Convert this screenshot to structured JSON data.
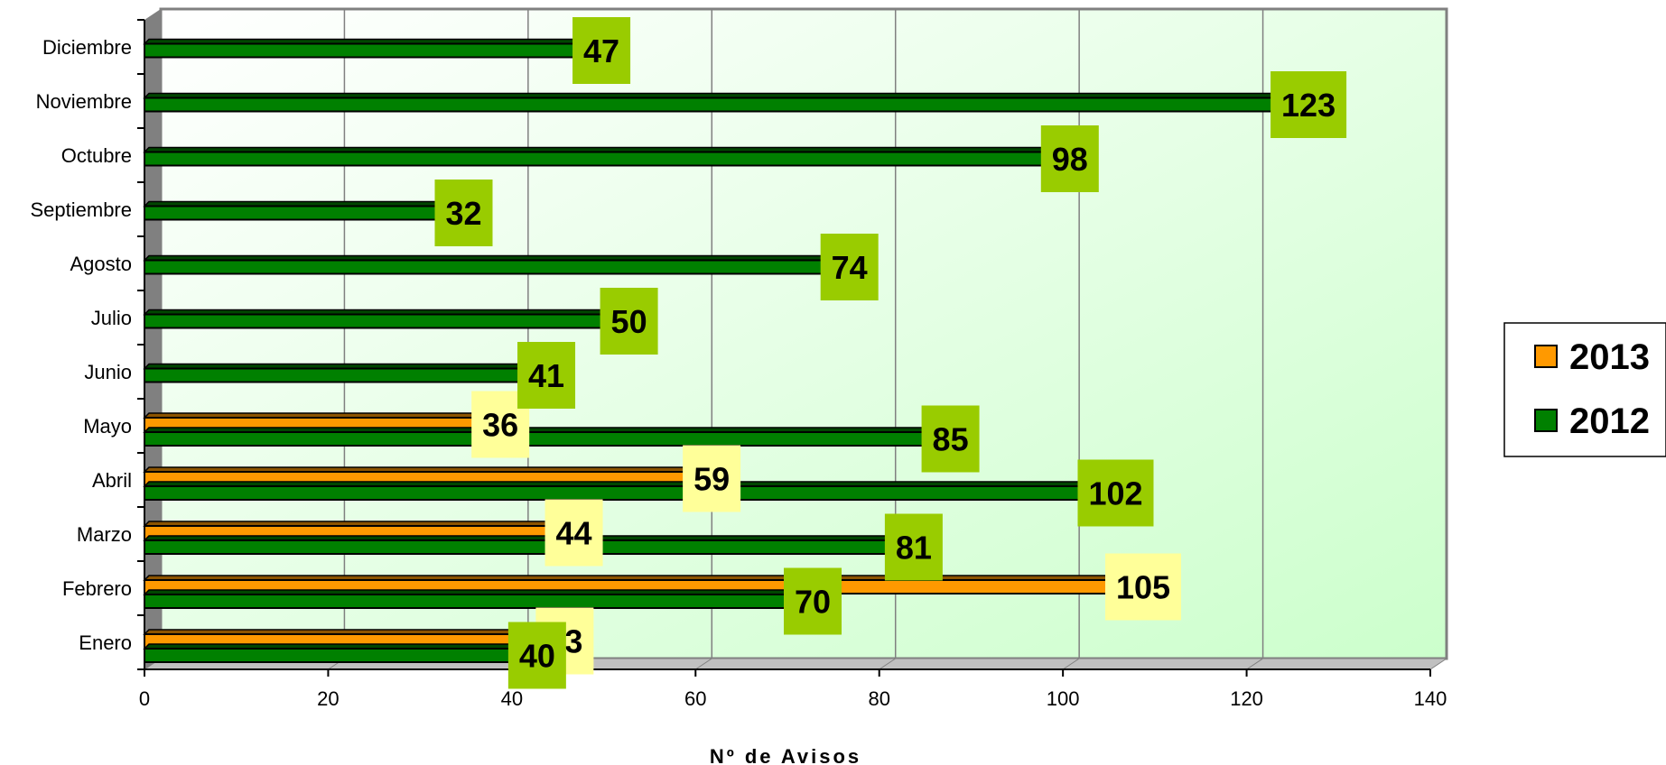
{
  "chart_data": {
    "type": "bar",
    "orientation": "horizontal",
    "categories": [
      "Enero",
      "Febrero",
      "Marzo",
      "Abril",
      "Mayo",
      "Junio",
      "Julio",
      "Agosto",
      "Septiembre",
      "Octubre",
      "Noviembre",
      "Diciembre"
    ],
    "series": [
      {
        "name": "2013",
        "color": "#FF9900",
        "label_bg": "#FFFF99",
        "values": [
          43,
          105,
          44,
          59,
          36,
          null,
          null,
          null,
          null,
          null,
          null,
          null
        ]
      },
      {
        "name": "2012",
        "color": "#008000",
        "label_bg": "#99CC00",
        "values": [
          40,
          70,
          81,
          102,
          85,
          41,
          50,
          74,
          32,
          98,
          123,
          47
        ]
      }
    ],
    "title": "",
    "xlabel": "Nº de Avisos",
    "ylabel": "",
    "xlim": [
      0,
      140
    ],
    "xticks": [
      0,
      20,
      40,
      60,
      80,
      100,
      120,
      140
    ],
    "grid": true,
    "legend_position": "right",
    "legend_order": [
      "2013",
      "2012"
    ]
  }
}
